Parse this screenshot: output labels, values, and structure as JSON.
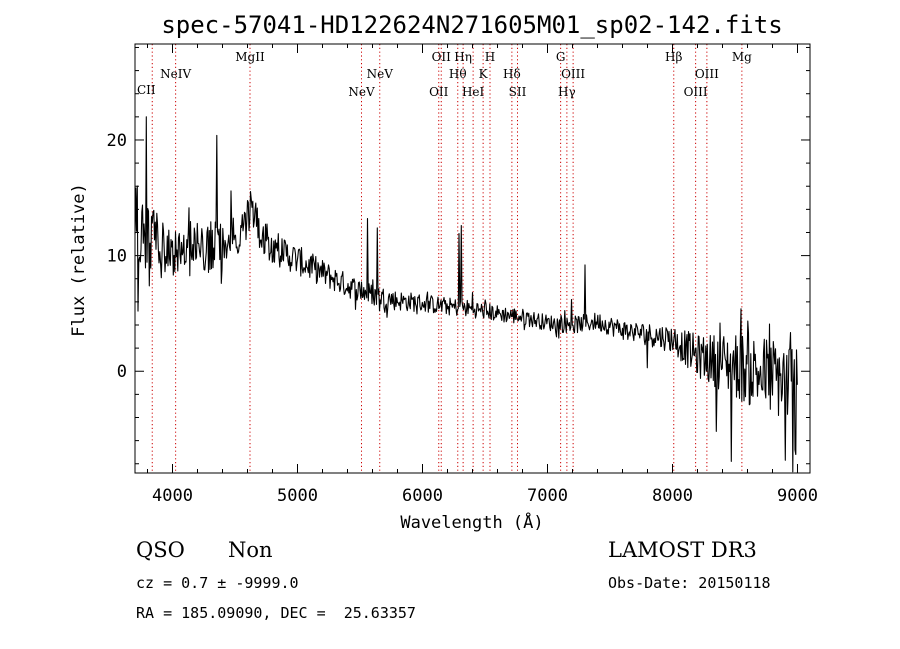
{
  "chart_data": {
    "type": "line",
    "title": "spec-57041-HD122624N271605M01_sp02-142.fits",
    "xlabel": "Wavelength (Å)",
    "ylabel": "Flux (relative)",
    "xlim": [
      3700,
      9100
    ],
    "ylim": [
      -8.8,
      28.3
    ],
    "xticks": [
      4000,
      5000,
      6000,
      7000,
      8000,
      9000
    ],
    "yticks": [
      0,
      10,
      20
    ],
    "x_minor_step": 200,
    "y_minor_step": 2,
    "line_color": "#000000",
    "marker_color": "#cc0000",
    "spectrum_seed": 57041,
    "spectrum_step": 6,
    "spectrum_anchors": [
      [
        3700,
        13
      ],
      [
        3800,
        11.6
      ],
      [
        3900,
        11
      ],
      [
        4000,
        10.6
      ],
      [
        4200,
        10.6
      ],
      [
        4400,
        10.8
      ],
      [
        4550,
        11.8
      ],
      [
        4640,
        13.9
      ],
      [
        4700,
        12.3
      ],
      [
        4800,
        10.8
      ],
      [
        5000,
        9.6
      ],
      [
        5200,
        8.5
      ],
      [
        5400,
        7.4
      ],
      [
        5600,
        6.6
      ],
      [
        5800,
        6.1
      ],
      [
        6000,
        5.9
      ],
      [
        6200,
        5.6
      ],
      [
        6400,
        5.4
      ],
      [
        6600,
        5.0
      ],
      [
        6800,
        4.7
      ],
      [
        7000,
        4.2
      ],
      [
        7200,
        4.0
      ],
      [
        7400,
        4.3
      ],
      [
        7600,
        3.6
      ],
      [
        7800,
        3.2
      ],
      [
        8000,
        2.8
      ],
      [
        8200,
        1.3
      ],
      [
        8400,
        0.8
      ],
      [
        8600,
        0.2
      ],
      [
        8800,
        -0.5
      ],
      [
        9000,
        -1.0
      ]
    ],
    "noise_profile": [
      [
        3700,
        3.5
      ],
      [
        4000,
        2.6
      ],
      [
        4500,
        2.0
      ],
      [
        5000,
        1.3
      ],
      [
        5500,
        1.0
      ],
      [
        6000,
        0.8
      ],
      [
        7000,
        0.7
      ],
      [
        7700,
        0.9
      ],
      [
        8000,
        1.2
      ],
      [
        8300,
        2.2
      ],
      [
        8600,
        3.2
      ],
      [
        9000,
        3.8
      ]
    ],
    "features": [
      [
        4356,
        20.4
      ],
      [
        4390,
        7.6
      ],
      [
        4470,
        15.6
      ],
      [
        3790,
        22.0
      ],
      [
        3725,
        5.2
      ],
      [
        5560,
        13.2
      ],
      [
        5640,
        12.4
      ],
      [
        6290,
        11.9
      ],
      [
        6310,
        12.6
      ],
      [
        6400,
        6.8
      ],
      [
        7190,
        6.2
      ],
      [
        7300,
        9.2
      ],
      [
        7800,
        0.3
      ],
      [
        8350,
        -5.2
      ],
      [
        8462,
        1.5
      ],
      [
        8470,
        -7.8
      ],
      [
        8548,
        5.4
      ],
      [
        8900,
        -7.7
      ],
      [
        8960,
        -8.7
      ],
      [
        8980,
        -6.8
      ]
    ],
    "lines": [
      {
        "label": "CII",
        "x": 3838,
        "row": 3,
        "align": "left"
      },
      {
        "label": "NeIV",
        "x": 4025,
        "row": 1,
        "align": "center"
      },
      {
        "label": "MgII",
        "x": 4620,
        "row": 0,
        "align": "center"
      },
      {
        "label": "NeV",
        "x": 5512,
        "row": 2,
        "align": "center"
      },
      {
        "label": "NeV",
        "x": 5658,
        "row": 1,
        "align": "center"
      },
      {
        "label": "OII",
        "x": 6130,
        "row": 2,
        "align": "center"
      },
      {
        "label": "OII",
        "x": 6150,
        "row": 0,
        "align": "center"
      },
      {
        "label": "Hθ",
        "x": 6282,
        "row": 1,
        "align": "center"
      },
      {
        "label": "Hη",
        "x": 6325,
        "row": 0,
        "align": "center"
      },
      {
        "label": "HeI",
        "x": 6405,
        "row": 2,
        "align": "center"
      },
      {
        "label": "K",
        "x": 6485,
        "row": 1,
        "align": "center"
      },
      {
        "label": "H",
        "x": 6540,
        "row": 0,
        "align": "center"
      },
      {
        "label": "Hδ",
        "x": 6715,
        "row": 1,
        "align": "center"
      },
      {
        "label": "SII",
        "x": 6760,
        "row": 2,
        "align": "center"
      },
      {
        "label": "G",
        "x": 7105,
        "row": 0,
        "align": "center"
      },
      {
        "label": "Hγ",
        "x": 7155,
        "row": 2,
        "align": "center"
      },
      {
        "label": "OIII",
        "x": 7205,
        "row": 1,
        "align": "center"
      },
      {
        "label": "Hβ",
        "x": 8010,
        "row": 0,
        "align": "center"
      },
      {
        "label": "OIII",
        "x": 8185,
        "row": 2,
        "align": "center"
      },
      {
        "label": "OIII",
        "x": 8275,
        "row": 1,
        "align": "center"
      },
      {
        "label": "Mg",
        "x": 8555,
        "row": 0,
        "align": "center"
      }
    ]
  },
  "info": {
    "class": "QSO",
    "subclass": "Non",
    "survey": "LAMOST DR3",
    "redshift": "cz = 0.7 ± -9999.0",
    "obs_date": "Obs-Date: 20150118",
    "coords": "RA = 185.09090, DEC =  25.63357"
  }
}
